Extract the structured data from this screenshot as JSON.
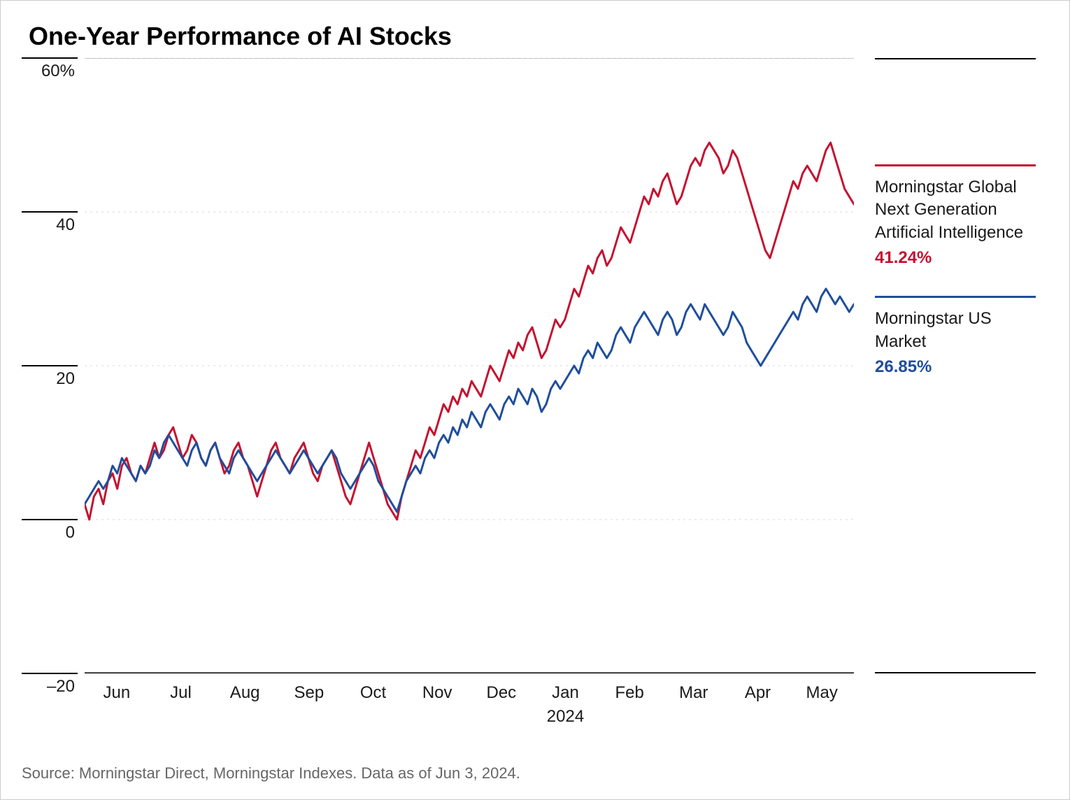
{
  "chart": {
    "title": "One-Year Performance of AI Stocks",
    "type": "line",
    "background_color": "#ffffff",
    "border_color": "#cccccc",
    "grid_color": "#d9d9d9",
    "axis_color": "#000000",
    "text_color": "#1a1a1a",
    "title_fontsize": 36,
    "label_fontsize": 24,
    "line_width": 3,
    "yaxis": {
      "min": -20,
      "max": 60,
      "ticks": [
        -20,
        0,
        20,
        40,
        60
      ],
      "tick_labels": [
        "–20",
        "0",
        "20",
        "40",
        "60%"
      ]
    },
    "xaxis": {
      "months": [
        "Jun",
        "Jul",
        "Aug",
        "Sep",
        "Oct",
        "Nov",
        "Dec",
        "Jan",
        "Feb",
        "Mar",
        "Apr",
        "May"
      ],
      "year_label": "2024",
      "year_label_under": "Jan"
    },
    "series": [
      {
        "id": "ai_index",
        "label": "Morningstar Global Next Generation Artificial Intelligence",
        "final_value_label": "41.24%",
        "color": "#c41230",
        "values": [
          2,
          0,
          3,
          4,
          2,
          5,
          6,
          4,
          7,
          8,
          6,
          5,
          7,
          6,
          8,
          10,
          8,
          9,
          11,
          12,
          10,
          8,
          9,
          11,
          10,
          8,
          7,
          9,
          10,
          8,
          6,
          7,
          9,
          10,
          8,
          7,
          5,
          3,
          5,
          7,
          9,
          10,
          8,
          7,
          6,
          8,
          9,
          10,
          8,
          6,
          5,
          7,
          8,
          9,
          7,
          5,
          3,
          2,
          4,
          6,
          8,
          10,
          8,
          6,
          4,
          2,
          1,
          0,
          3,
          5,
          7,
          9,
          8,
          10,
          12,
          11,
          13,
          15,
          14,
          16,
          15,
          17,
          16,
          18,
          17,
          16,
          18,
          20,
          19,
          18,
          20,
          22,
          21,
          23,
          22,
          24,
          25,
          23,
          21,
          22,
          24,
          26,
          25,
          26,
          28,
          30,
          29,
          31,
          33,
          32,
          34,
          35,
          33,
          34,
          36,
          38,
          37,
          36,
          38,
          40,
          42,
          41,
          43,
          42,
          44,
          45,
          43,
          41,
          42,
          44,
          46,
          47,
          46,
          48,
          49,
          48,
          47,
          45,
          46,
          48,
          47,
          45,
          43,
          41,
          39,
          37,
          35,
          34,
          36,
          38,
          40,
          42,
          44,
          43,
          45,
          46,
          45,
          44,
          46,
          48,
          49,
          47,
          45,
          43,
          42,
          41
        ]
      },
      {
        "id": "us_market",
        "label": "Morningstar US Market",
        "final_value_label": "26.85%",
        "color": "#1f4e9c",
        "values": [
          2,
          3,
          4,
          5,
          4,
          5,
          7,
          6,
          8,
          7,
          6,
          5,
          7,
          6,
          7,
          9,
          8,
          10,
          11,
          10,
          9,
          8,
          7,
          9,
          10,
          8,
          7,
          9,
          10,
          8,
          7,
          6,
          8,
          9,
          8,
          7,
          6,
          5,
          6,
          7,
          8,
          9,
          8,
          7,
          6,
          7,
          8,
          9,
          8,
          7,
          6,
          7,
          8,
          9,
          8,
          6,
          5,
          4,
          5,
          6,
          7,
          8,
          7,
          5,
          4,
          3,
          2,
          1,
          3,
          5,
          6,
          7,
          6,
          8,
          9,
          8,
          10,
          11,
          10,
          12,
          11,
          13,
          12,
          14,
          13,
          12,
          14,
          15,
          14,
          13,
          15,
          16,
          15,
          17,
          16,
          15,
          17,
          16,
          14,
          15,
          17,
          18,
          17,
          18,
          19,
          20,
          19,
          21,
          22,
          21,
          23,
          22,
          21,
          22,
          24,
          25,
          24,
          23,
          25,
          26,
          27,
          26,
          25,
          24,
          26,
          27,
          26,
          24,
          25,
          27,
          28,
          27,
          26,
          28,
          27,
          26,
          25,
          24,
          25,
          27,
          26,
          25,
          23,
          22,
          21,
          20,
          21,
          22,
          23,
          24,
          25,
          26,
          27,
          26,
          28,
          29,
          28,
          27,
          29,
          30,
          29,
          28,
          29,
          28,
          27,
          28
        ]
      }
    ],
    "legend": [
      {
        "series": "ai_index",
        "label": "Morningstar Global Next Generation Artificial Intelligence",
        "value": "41.24%",
        "color": "#c41230"
      },
      {
        "series": "us_market",
        "label": "Morningstar US Market",
        "value": "26.85%",
        "color": "#1f4e9c"
      }
    ],
    "source": "Source: Morningstar Direct, Morningstar Indexes. Data as of Jun 3, 2024."
  }
}
